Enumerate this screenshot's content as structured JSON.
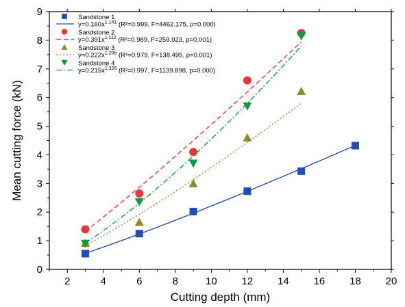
{
  "chart_data": {
    "type": "scatter",
    "title": "",
    "xlabel": "Cutting depth  (mm)",
    "ylabel": "Mean cutting force (kN)",
    "xlim": [
      1,
      20
    ],
    "ylim": [
      0,
      9
    ],
    "xticks": [
      2,
      4,
      6,
      8,
      10,
      12,
      14,
      16,
      18,
      20
    ],
    "yticks": [
      0,
      1,
      2,
      3,
      4,
      5,
      6,
      7,
      8,
      9
    ],
    "grid": false,
    "legend_position": "top-left",
    "series": [
      {
        "name": "Sandstone 1",
        "marker": "square",
        "color": "#1f4fb4",
        "line_style": "solid",
        "x": [
          3,
          6,
          9,
          12,
          15,
          18
        ],
        "y": [
          0.55,
          1.25,
          2.02,
          2.73,
          3.43,
          4.32
        ],
        "fit": {
          "a": 0.16,
          "b": 1.141
        },
        "equation": {
          "prefix": "y=0.160x",
          "exponent": "1.141",
          "stats": " (R²=0.999, F=4462.175, p=0.000)"
        }
      },
      {
        "name": "Sandstone 2",
        "marker": "circle",
        "color": "#e8353a",
        "line_style": "dashed",
        "x": [
          3,
          6,
          9,
          12,
          15
        ],
        "y": [
          1.4,
          2.65,
          4.1,
          6.6,
          8.25
        ],
        "fit": {
          "a": 0.391,
          "b": 1.112
        },
        "equation": {
          "prefix": "y=0.391x",
          "exponent": "1.112",
          "stats": " (R²=0.989, F=259.923, p=0.001)"
        }
      },
      {
        "name": "Sandstone 3",
        "marker": "triangle-up",
        "color": "#8c8a2a",
        "line_style": "dotted",
        "x": [
          3,
          6,
          9,
          12,
          15
        ],
        "y": [
          0.92,
          1.65,
          3.0,
          4.6,
          6.22
        ],
        "fit": {
          "a": 0.222,
          "b": 1.205
        },
        "equation": {
          "prefix": "y=0.222x",
          "exponent": "1.205",
          "stats": " (R²=0.979, F=138.495, p=0.001)"
        }
      },
      {
        "name": "Sandstone 4",
        "marker": "triangle-down",
        "color": "#0f9a3e",
        "line_style": "dash-dot",
        "x": [
          3,
          6,
          9,
          12,
          15
        ],
        "y": [
          0.9,
          2.35,
          3.7,
          5.7,
          8.15
        ],
        "fit": {
          "a": 0.215,
          "b": 1.326
        },
        "equation": {
          "prefix": "y=0.215x",
          "exponent": "1.326",
          "stats": " (R²=0.997, F=1139.898, p=0.000)"
        }
      }
    ]
  }
}
